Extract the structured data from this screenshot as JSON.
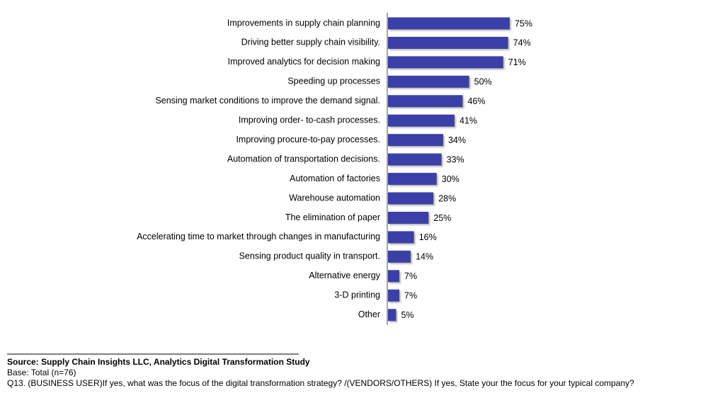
{
  "chart_data": {
    "type": "bar",
    "orientation": "horizontal",
    "categories": [
      "Improvements in supply chain planning",
      "Driving better supply chain visibility.",
      "Improved analytics for decision making",
      "Speeding up processes",
      "Sensing market conditions to improve the demand signal.",
      "Improving order- to-cash processes.",
      "Improving procure-to-pay processes.",
      "Automation of transportation decisions.",
      "Automation of factories",
      "Warehouse automation",
      "The elimination of paper",
      "Accelerating time to market through changes in manufacturing",
      "Sensing product quality in transport.",
      "Alternative energy",
      "3-D printing",
      "Other"
    ],
    "values": [
      75,
      74,
      71,
      50,
      46,
      41,
      34,
      33,
      30,
      28,
      25,
      16,
      14,
      7,
      7,
      5
    ],
    "value_labels": [
      "75%",
      "74%",
      "71%",
      "50%",
      "46%",
      "41%",
      "34%",
      "33%",
      "30%",
      "28%",
      "25%",
      "16%",
      "14%",
      "7%",
      "7%",
      "5%"
    ],
    "color": "#3a3fa8"
  },
  "footer": {
    "source": "Source:  Supply Chain Insights LLC, Analytics Digital Transformation Study",
    "base": "Base: Total (n=76)",
    "question": "Q13. (BUSINESS USER)If yes, what was the focus of the digital transformation strategy? /(VENDORS/OTHERS) If yes, State your the focus for your typical company?"
  }
}
